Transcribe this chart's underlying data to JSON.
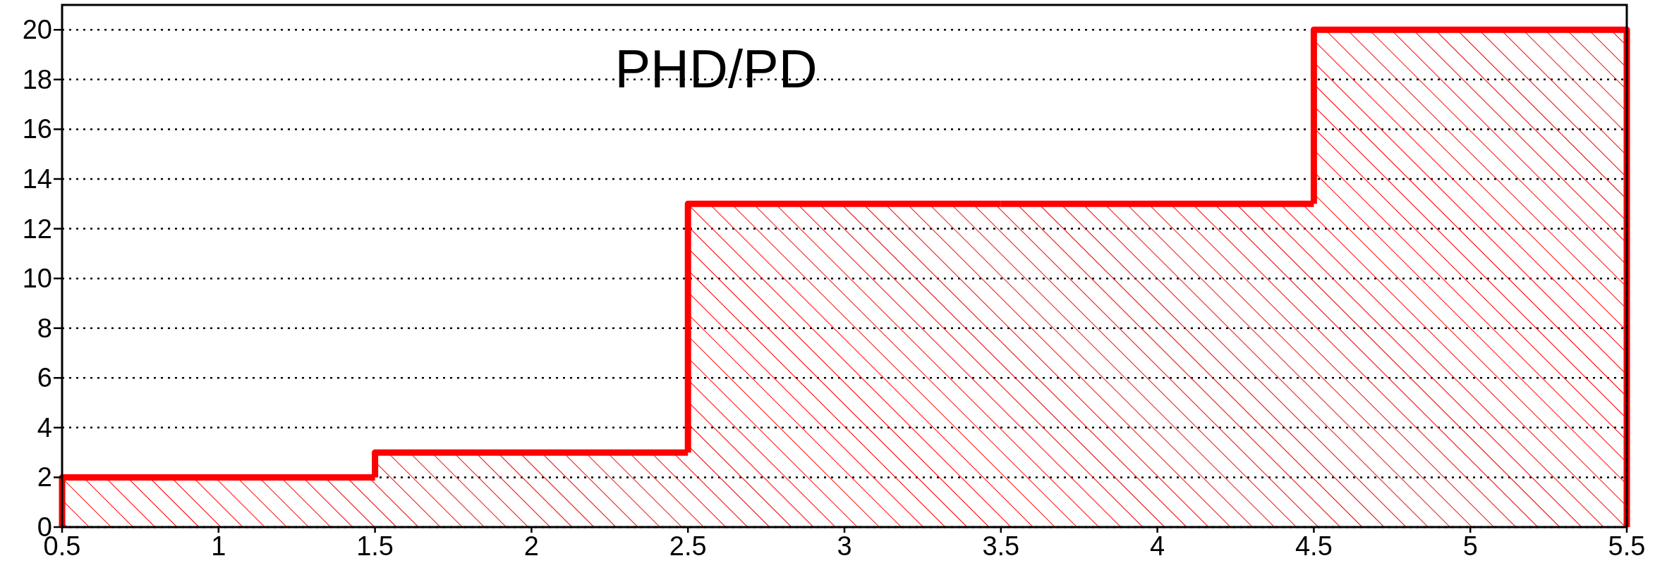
{
  "chart_data": {
    "type": "histogram",
    "title": "PHD/PD",
    "bins": [
      0.5,
      1.5,
      2.5,
      3.5,
      4.5,
      5.5
    ],
    "values": [
      2,
      3,
      13,
      13,
      20
    ],
    "color": "#ff0000",
    "xlim": [
      0.5,
      5.5
    ],
    "xticks": [
      0.5,
      1,
      1.5,
      2,
      2.5,
      3,
      3.5,
      4,
      4.5,
      5,
      5.5
    ],
    "ylim": [
      0,
      21
    ],
    "yticks": [
      0,
      2,
      4,
      6,
      8,
      10,
      12,
      14,
      16,
      18,
      20
    ],
    "grid": "y"
  }
}
